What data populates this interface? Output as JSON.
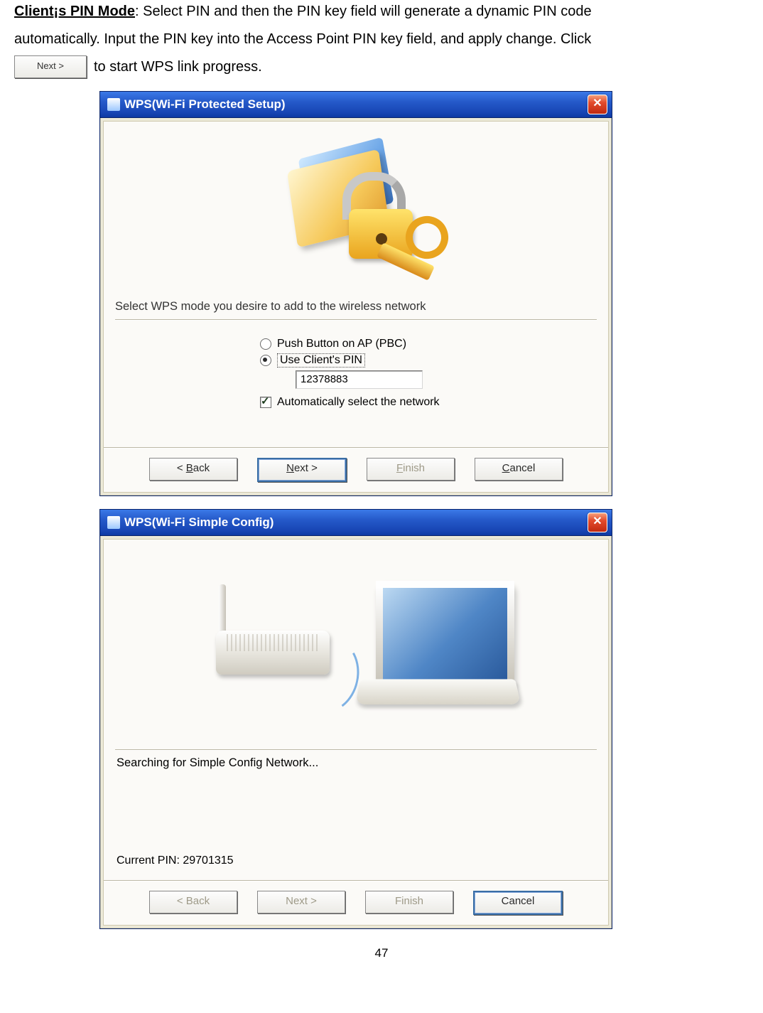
{
  "intro": {
    "heading": "Client¡s PIN Mode",
    "line1_rest": ": Select PIN and then the PIN key field will generate a dynamic PIN code",
    "line2": "automatically.    Input the PIN key into the Access Point PIN key field, and apply change.    Click",
    "next_btn": "Next >",
    "line3_rest": " to start WPS link progress."
  },
  "dialog1": {
    "title": "WPS(Wi-Fi Protected Setup)",
    "prompt": "Select WPS mode you desire to add to the wireless network",
    "option_pbc": "Push Button on AP (PBC)",
    "option_pin": "Use Client's PIN",
    "pin_value": "12378883",
    "auto_select": "Automatically select the network",
    "btn_back_pre": "< ",
    "btn_back_u": "B",
    "btn_back_post": "ack",
    "btn_next_pre": "",
    "btn_next_u": "N",
    "btn_next_post": "ext >",
    "btn_finish_u": "F",
    "btn_finish_post": "inish",
    "btn_cancel_u": "C",
    "btn_cancel_post": "ancel"
  },
  "dialog2": {
    "title": "WPS(Wi-Fi Simple Config)",
    "status": "Searching for Simple Config Network...",
    "current_pin": "Current PIN: 29701315",
    "btn_back": "< Back",
    "btn_next": "Next >",
    "btn_finish": "Finish",
    "btn_cancel": "Cancel"
  },
  "page_number": "47"
}
